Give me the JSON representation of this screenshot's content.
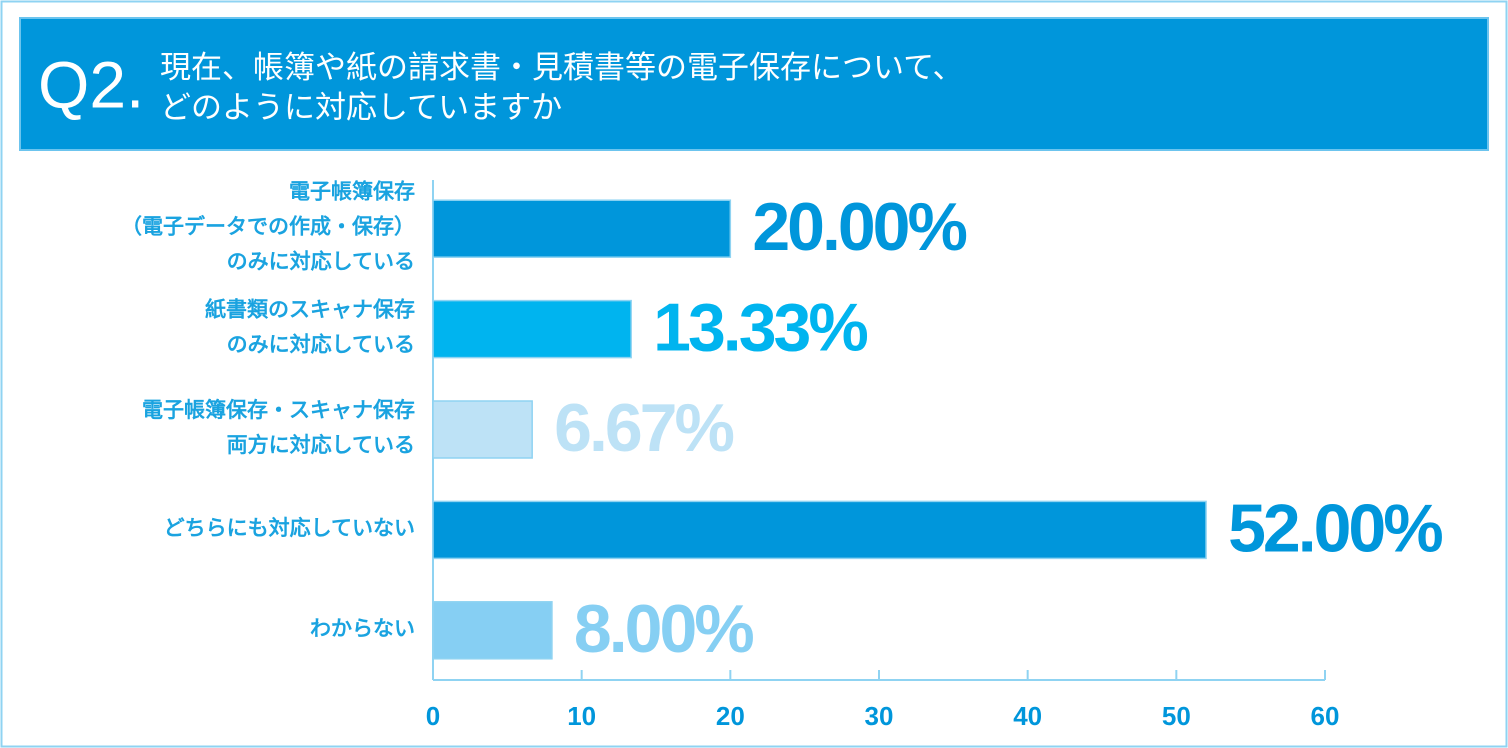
{
  "chart_data": {
    "type": "bar",
    "orientation": "horizontal",
    "question_number": "Q2.",
    "title": [
      "現在、帳簿や紙の請求書・見積書等の電子保存について、",
      "どのように対応していますか"
    ],
    "categories": [
      [
        "電子帳簿保存",
        "（電子データでの作成・保存）",
        "のみに対応している"
      ],
      [
        "紙書類のスキャナ保存",
        "のみに対応している"
      ],
      [
        "電子帳簿保存・スキャナ保存",
        "両方に対応している"
      ],
      [
        "どちらにも対応していない"
      ],
      [
        "わからない"
      ]
    ],
    "values": [
      20,
      13.33,
      6.67,
      52,
      8
    ],
    "value_labels": [
      "20.00%",
      "13.33%",
      "6.67%",
      "52.00%",
      "8.00%"
    ],
    "colors": [
      "#0096db",
      "#00b4ef",
      "#bde2f6",
      "#0096db",
      "#86cff3"
    ],
    "xlim": [
      0,
      60
    ],
    "xticks": [
      0,
      10,
      20,
      30,
      40,
      50,
      60
    ],
    "grid": false
  }
}
